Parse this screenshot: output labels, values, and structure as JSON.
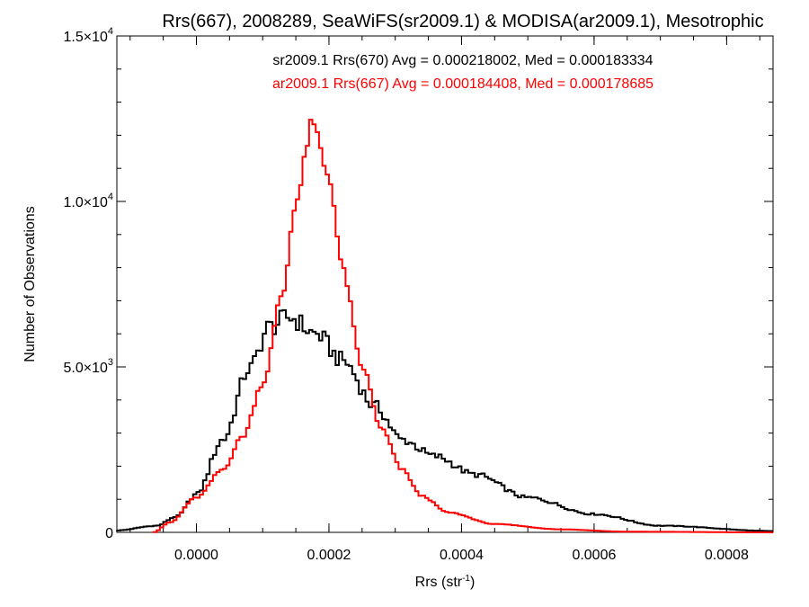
{
  "chart_data": {
    "type": "line",
    "title": "Rrs(667), 2008289, SeaWiFS(sr2009.1) & MODISA(ar2009.1), Mesotrophic",
    "xlabel": {
      "base": "Rrs (str",
      "sup": "-1",
      "end": ")"
    },
    "ylabel": "Number of Observations",
    "xlim": [
      -0.00012,
      0.00087
    ],
    "ylim": [
      0,
      15000
    ],
    "xticks": [
      {
        "value": 0.0,
        "label": "0.0000"
      },
      {
        "value": 0.0002,
        "label": "0.0002"
      },
      {
        "value": 0.0004,
        "label": "0.0004"
      },
      {
        "value": 0.0006,
        "label": "0.0006"
      },
      {
        "value": 0.0008,
        "label": "0.0008"
      }
    ],
    "yticks": [
      {
        "value": 0,
        "mant": "0",
        "exp": ""
      },
      {
        "value": 5000,
        "mant": "5.0×10",
        "exp": "3"
      },
      {
        "value": 10000,
        "mant": "1.0×10",
        "exp": "4"
      },
      {
        "value": 15000,
        "mant": "1.5×10",
        "exp": "4"
      }
    ],
    "bin_width": 5e-06,
    "series": [
      {
        "name": "sr2009.1 Rrs(670)",
        "color": "#000000",
        "stats": "sr2009.1 Rrs(670) Avg = 0.000218002, Med = 0.000183334",
        "style": "histogram-step",
        "shape": {
          "start": -0.00012,
          "end": 0.00087,
          "left_edge_count": 60,
          "knots_x": [
            -0.00012,
            -6e-05,
            -3e-05,
            0.0,
            4e-05,
            8e-05,
            0.00011,
            0.00014,
            0.00018,
            0.00022,
            0.00027,
            0.00031,
            0.00036,
            0.00042,
            0.0005,
            0.0006,
            0.0007,
            0.00087
          ],
          "knots_y": [
            60,
            200,
            480,
            1150,
            2800,
            4950,
            6200,
            6500,
            6000,
            5200,
            3800,
            2800,
            2300,
            1750,
            1050,
            550,
            200,
            40
          ],
          "jitter": 0.05
        }
      },
      {
        "name": "ar2009.1 Rrs(667)",
        "color": "#ff0000",
        "stats": "ar2009.1 Rrs(667) Avg = 0.000184408, Med = 0.000178685",
        "style": "histogram-step",
        "shape": {
          "start": -6.5e-05,
          "end": 0.00087,
          "left_edge_count": 0,
          "knots_x": [
            -6.5e-05,
            -4e-05,
            0.0,
            4e-05,
            7e-05,
            0.0001,
            0.00013,
            0.00015,
            0.000175,
            0.0002,
            0.00022,
            0.00025,
            0.00028,
            0.00031,
            0.00034,
            0.00038,
            0.00045,
            0.00055,
            0.00065,
            0.00087
          ],
          "knots_y": [
            0,
            300,
            1050,
            1900,
            2900,
            4500,
            7200,
            10000,
            12300,
            10800,
            8000,
            5000,
            3100,
            1900,
            1100,
            600,
            250,
            90,
            20,
            0
          ],
          "jitter": 0.02
        }
      }
    ],
    "legend": "top-center, text colored by series"
  }
}
